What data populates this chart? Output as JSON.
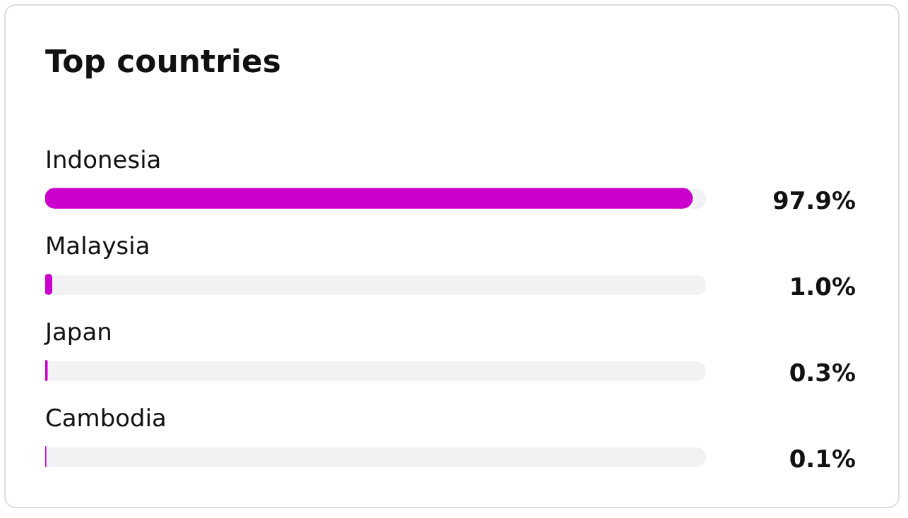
{
  "chart_data": {
    "type": "bar",
    "orientation": "horizontal",
    "title": "Top countries",
    "categories": [
      "Indonesia",
      "Malaysia",
      "Japan",
      "Cambodia"
    ],
    "values": [
      97.9,
      1.0,
      0.3,
      0.1
    ],
    "value_labels": [
      "97.9%",
      "1.0%",
      "0.3%",
      "0.1%"
    ],
    "color": "#cc00cc",
    "xlim": [
      0,
      100
    ],
    "tick_labels": false
  }
}
